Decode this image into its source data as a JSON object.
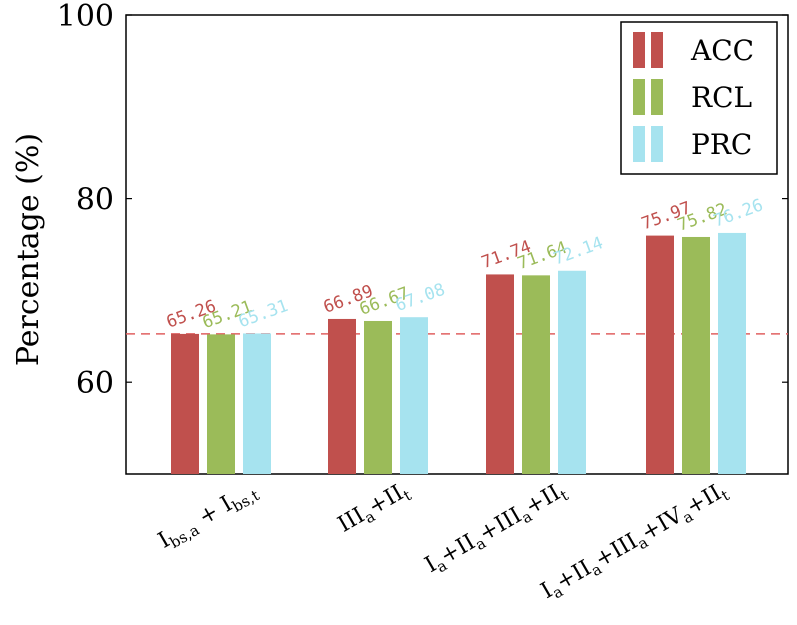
{
  "chart_data": {
    "type": "bar",
    "title": "",
    "xlabel": "",
    "ylabel": "Percentage (%)",
    "ylim": [
      50,
      100
    ],
    "yticks": [
      60,
      80,
      100
    ],
    "grid": false,
    "legend_position": "top-right",
    "categories": [
      {
        "main": "I",
        "sub": "bs,a",
        "main2": " + I",
        "sub2": "bs,t",
        "full": "Ibs,a + Ibs,t"
      },
      {
        "full": "IIIa+IIt"
      },
      {
        "full": "Ia+IIa+IIIa+IIt"
      },
      {
        "full": "Ia+IIa+IIIa+IVa+IIt"
      }
    ],
    "category_parts": [
      [
        [
          "I",
          ""
        ],
        [
          "bs,a",
          "sub"
        ],
        [
          " + I",
          ""
        ],
        [
          "bs,t",
          "sub"
        ]
      ],
      [
        [
          "III",
          ""
        ],
        [
          "a",
          "sub"
        ],
        [
          "+II",
          ""
        ],
        [
          "t",
          "sub"
        ]
      ],
      [
        [
          "I",
          ""
        ],
        [
          "a",
          "sub"
        ],
        [
          "+II",
          ""
        ],
        [
          "a",
          "sub"
        ],
        [
          "+III",
          ""
        ],
        [
          "a",
          "sub"
        ],
        [
          "+II",
          ""
        ],
        [
          "t",
          "sub"
        ]
      ],
      [
        [
          "I",
          ""
        ],
        [
          "a",
          "sub"
        ],
        [
          "+II",
          ""
        ],
        [
          "a",
          "sub"
        ],
        [
          "+III",
          ""
        ],
        [
          "a",
          "sub"
        ],
        [
          "+IV",
          ""
        ],
        [
          "a",
          "sub"
        ],
        [
          "+II",
          ""
        ],
        [
          "t",
          "sub"
        ]
      ]
    ],
    "series": [
      {
        "name": "ACC",
        "color": "#c0504d",
        "values": [
          65.26,
          66.89,
          71.74,
          75.97
        ],
        "labels": [
          "65.26",
          "66.89",
          "71.74",
          "75.97"
        ]
      },
      {
        "name": "RCL",
        "color": "#9bbb59",
        "values": [
          65.21,
          66.67,
          71.64,
          75.82
        ],
        "labels": [
          "65.21",
          "66.67",
          "71.64",
          "75.82"
        ]
      },
      {
        "name": "PRC",
        "color": "#a6e3ef",
        "values": [
          65.31,
          67.08,
          72.14,
          76.26
        ],
        "labels": [
          "65.31",
          "67.08",
          "72.14",
          "76.26"
        ]
      }
    ],
    "reference_line": {
      "value": 65.26,
      "color": "#e06060",
      "style": "dashed"
    }
  }
}
